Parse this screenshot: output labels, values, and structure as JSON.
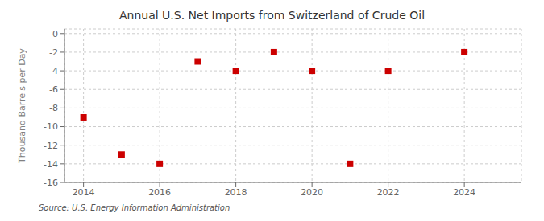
{
  "chart_data": {
    "type": "scatter",
    "title": "Annual U.S. Net Imports from Switzerland of Crude Oil",
    "ylabel": "Thousand Barrels per Day",
    "annotations": [
      "Source: U.S. Energy Information Administration"
    ],
    "x": [
      2014,
      2015,
      2016,
      2017,
      2018,
      2019,
      2020,
      2021,
      2022,
      2024
    ],
    "values": [
      -9,
      -13,
      -14,
      -3,
      -4,
      -2,
      -4,
      -14,
      -4,
      -2
    ],
    "color": "#cc0000",
    "marker": "square",
    "xlim": [
      2013.5,
      2025.5
    ],
    "ylim": [
      -16,
      0.5
    ],
    "xticks": [
      2014,
      2016,
      2018,
      2020,
      2022,
      2024
    ],
    "yticks": [
      0,
      -2,
      -4,
      -6,
      -8,
      -10,
      -12,
      -14,
      -16
    ],
    "grid": true
  }
}
